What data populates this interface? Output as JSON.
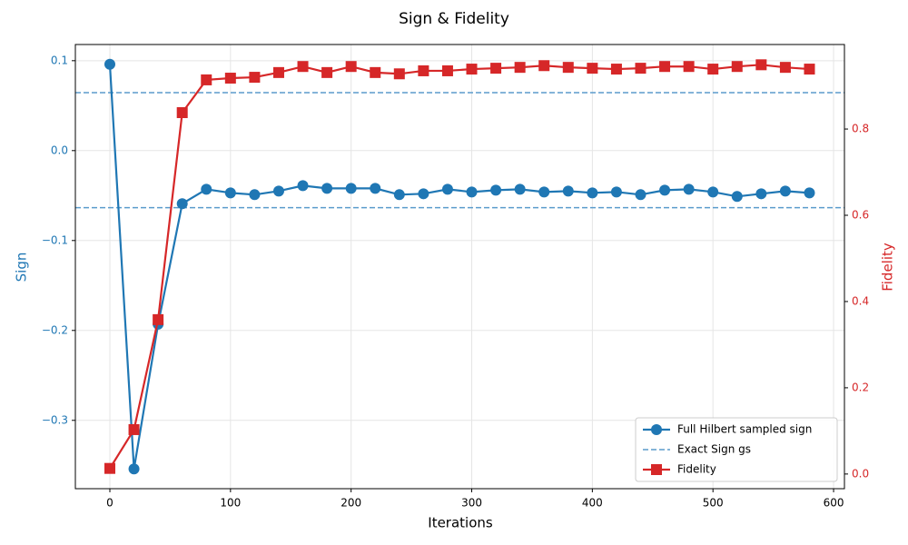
{
  "chart_data": {
    "type": "line",
    "title": "Sign & Fidelity",
    "xlabel": "Iterations",
    "ylabel": "Sign",
    "y2label": "Fidelity",
    "x": [
      0,
      20,
      40,
      60,
      80,
      100,
      120,
      140,
      160,
      180,
      200,
      220,
      240,
      260,
      280,
      300,
      320,
      340,
      360,
      380,
      400,
      420,
      440,
      460,
      480,
      500,
      520,
      540,
      560,
      580
    ],
    "series": [
      {
        "name": "Full Hilbert sampled sign",
        "color": "#1f77b4",
        "marker": "circle",
        "axis": "y",
        "values": [
          0.096,
          -0.354,
          -0.193,
          -0.059,
          -0.043,
          -0.047,
          -0.049,
          -0.045,
          -0.039,
          -0.042,
          -0.042,
          -0.042,
          -0.049,
          -0.048,
          -0.043,
          -0.046,
          -0.044,
          -0.043,
          -0.046,
          -0.045,
          -0.047,
          -0.046,
          -0.049,
          -0.044,
          -0.043,
          -0.046,
          -0.051,
          -0.048,
          -0.045,
          -0.047
        ]
      },
      {
        "name": "Fidelity",
        "color": "#d62728",
        "marker": "square",
        "axis": "y2",
        "values": [
          0.013,
          0.103,
          0.358,
          0.838,
          0.914,
          0.918,
          0.92,
          0.931,
          0.945,
          0.931,
          0.945,
          0.931,
          0.928,
          0.935,
          0.935,
          0.939,
          0.941,
          0.943,
          0.947,
          0.943,
          0.941,
          0.939,
          0.941,
          0.945,
          0.945,
          0.939,
          0.945,
          0.949,
          0.943,
          0.939
        ]
      }
    ],
    "hlines": {
      "name": "Exact Sign gs",
      "color": "#5b9ccc",
      "values": [
        0.0645,
        -0.0635
      ]
    },
    "xlim": [
      -28.6,
      609
    ],
    "xticks": [
      0,
      100,
      200,
      300,
      400,
      500,
      600
    ],
    "ylim": [
      -0.376,
      0.118
    ],
    "yticks": [
      {
        "value": -0.3,
        "label": "−0.3"
      },
      {
        "value": -0.2,
        "label": "−0.2"
      },
      {
        "value": -0.1,
        "label": "−0.1"
      },
      {
        "value": 0,
        "label": "0.0"
      },
      0.1
    ],
    "y2lim": [
      -0.034,
      0.996
    ],
    "y2ticks": [
      {
        "value": 0,
        "label": "0.0"
      },
      0.2,
      0.4,
      0.6,
      0.8
    ],
    "grid": true,
    "legend": "lower right"
  }
}
